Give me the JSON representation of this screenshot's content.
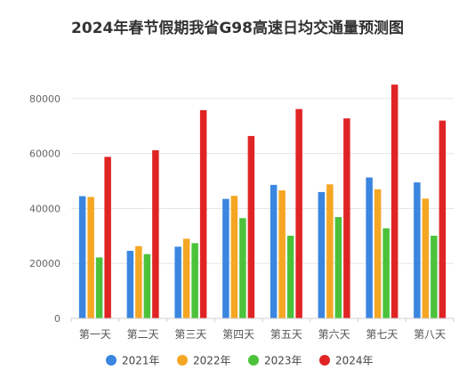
{
  "chart_data": {
    "type": "bar",
    "title": "2024年春节假期我省G98高速日均交通量预测图",
    "xlabel": "",
    "ylabel": "",
    "ylim": [
      0,
      90000
    ],
    "yticks": [
      0,
      20000,
      40000,
      60000,
      80000
    ],
    "grid": true,
    "legend_position": "bottom",
    "categories": [
      "第一天",
      "第二天",
      "第三天",
      "第四天",
      "第五天",
      "第六天",
      "第七天",
      "第八天"
    ],
    "series": [
      {
        "name": "2021年",
        "color": "#3a86e0",
        "values": [
          44500,
          24600,
          26100,
          43500,
          48600,
          46000,
          51300,
          49500
        ]
      },
      {
        "name": "2022年",
        "color": "#f5a623",
        "values": [
          44200,
          26300,
          29000,
          44600,
          46600,
          48800,
          47000,
          43600
        ]
      },
      {
        "name": "2023年",
        "color": "#4cc23a",
        "values": [
          22200,
          23400,
          27400,
          36500,
          30100,
          36900,
          32800,
          30100
        ]
      },
      {
        "name": "2024年",
        "color": "#e02424",
        "values": [
          58800,
          61200,
          75800,
          66400,
          76200,
          72800,
          85100,
          72000
        ]
      }
    ]
  }
}
